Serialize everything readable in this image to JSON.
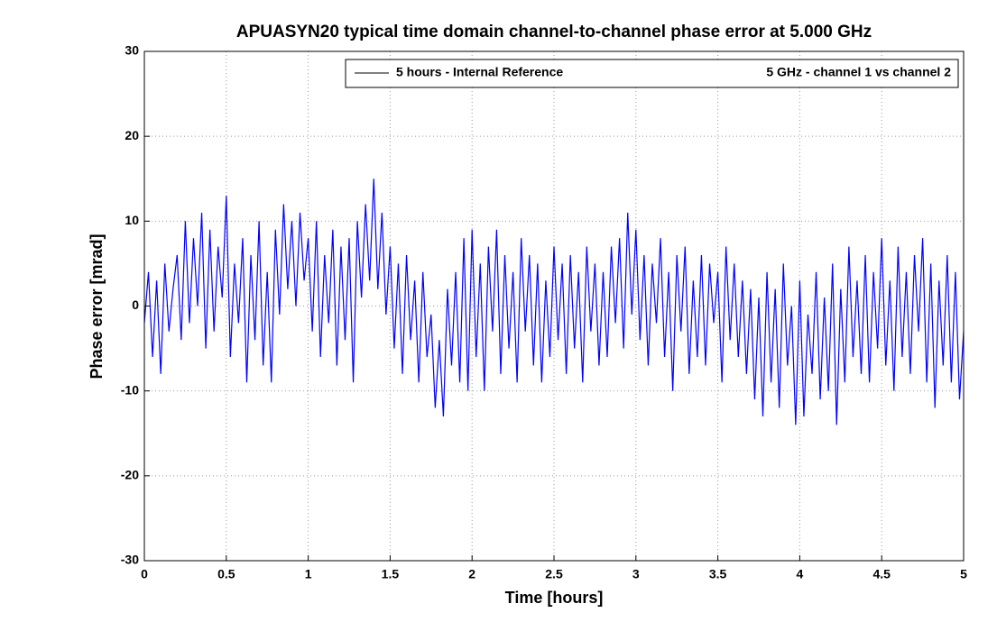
{
  "chart_data": {
    "type": "line",
    "title": "APUASYN20 typical time domain channel-to-channel phase error at 5.000 GHz",
    "x_label": "Time [hours]",
    "y_label": "Phase error [mrad]",
    "legend_note": "5 GHz - channel 1 vs channel 2",
    "legend": "upper right",
    "grid": true,
    "xlim": [
      0,
      5
    ],
    "xticks": [
      0,
      0.5,
      1,
      1.5,
      2,
      2.5,
      3,
      3.5,
      4,
      4.5,
      5
    ],
    "ylim": [
      -30,
      30
    ],
    "yticks": [
      -30,
      -20,
      -10,
      0,
      10,
      20,
      30
    ],
    "x": [
      0,
      0.025,
      0.05,
      0.075,
      0.1,
      0.125,
      0.15,
      0.175,
      0.2,
      0.225,
      0.25,
      0.275,
      0.3,
      0.325,
      0.35,
      0.375,
      0.4,
      0.425,
      0.45,
      0.475,
      0.5,
      0.525,
      0.55,
      0.575,
      0.6,
      0.625,
      0.65,
      0.675,
      0.7,
      0.725,
      0.75,
      0.775,
      0.8,
      0.825,
      0.85,
      0.875,
      0.9,
      0.925,
      0.95,
      0.975,
      1,
      1.025,
      1.05,
      1.075,
      1.1,
      1.125,
      1.15,
      1.175,
      1.2,
      1.225,
      1.25,
      1.275,
      1.3,
      1.325,
      1.35,
      1.375,
      1.4,
      1.425,
      1.45,
      1.475,
      1.5,
      1.525,
      1.55,
      1.575,
      1.6,
      1.625,
      1.65,
      1.675,
      1.7,
      1.725,
      1.75,
      1.775,
      1.8,
      1.825,
      1.85,
      1.875,
      1.9,
      1.925,
      1.95,
      1.975,
      2,
      2.025,
      2.05,
      2.075,
      2.1,
      2.125,
      2.15,
      2.175,
      2.2,
      2.225,
      2.25,
      2.275,
      2.3,
      2.325,
      2.35,
      2.375,
      2.4,
      2.425,
      2.45,
      2.475,
      2.5,
      2.525,
      2.55,
      2.575,
      2.6,
      2.625,
      2.65,
      2.675,
      2.7,
      2.725,
      2.75,
      2.775,
      2.8,
      2.825,
      2.85,
      2.875,
      2.9,
      2.925,
      2.95,
      2.975,
      3,
      3.025,
      3.05,
      3.075,
      3.1,
      3.125,
      3.15,
      3.175,
      3.2,
      3.225,
      3.25,
      3.275,
      3.3,
      3.325,
      3.35,
      3.375,
      3.4,
      3.425,
      3.45,
      3.475,
      3.5,
      3.525,
      3.55,
      3.575,
      3.6,
      3.625,
      3.65,
      3.675,
      3.7,
      3.725,
      3.75,
      3.775,
      3.8,
      3.825,
      3.85,
      3.875,
      3.9,
      3.925,
      3.95,
      3.975,
      4,
      4.025,
      4.05,
      4.075,
      4.1,
      4.125,
      4.15,
      4.175,
      4.2,
      4.225,
      4.25,
      4.275,
      4.3,
      4.325,
      4.35,
      4.375,
      4.4,
      4.425,
      4.45,
      4.475,
      4.5,
      4.525,
      4.55,
      4.575,
      4.6,
      4.625,
      4.65,
      4.675,
      4.7,
      4.725,
      4.75,
      4.775,
      4.8,
      4.825,
      4.85,
      4.875,
      4.9,
      4.925,
      4.95,
      4.975,
      5
    ],
    "series": [
      {
        "name": "5 hours - Internal Reference",
        "color": "#0000ff",
        "values": [
          -2,
          4,
          -6,
          3,
          -8,
          5,
          -3,
          2,
          6,
          -4,
          10,
          -2,
          8,
          0,
          11,
          -5,
          9,
          -3,
          7,
          1,
          13,
          -6,
          5,
          -2,
          8,
          -9,
          6,
          -4,
          10,
          -7,
          4,
          -9,
          9,
          -1,
          12,
          2,
          10,
          0,
          11,
          3,
          8,
          -3,
          10,
          -6,
          6,
          -2,
          9,
          -7,
          7,
          -4,
          8,
          -9,
          10,
          1,
          12,
          3,
          15,
          2,
          11,
          -1,
          7,
          -5,
          5,
          -8,
          6,
          -4,
          3,
          -9,
          4,
          -6,
          -1,
          -12,
          -4,
          -13,
          2,
          -7,
          4,
          -9,
          8,
          -10,
          9,
          -6,
          5,
          -10,
          7,
          -3,
          9,
          -8,
          6,
          -5,
          4,
          -9,
          8,
          -3,
          6,
          -7,
          5,
          -9,
          3,
          -6,
          7,
          -4,
          5,
          -8,
          6,
          -5,
          4,
          -9,
          7,
          -3,
          5,
          -7,
          4,
          -6,
          7,
          -2,
          8,
          -5,
          11,
          -1,
          9,
          -4,
          6,
          -7,
          5,
          -2,
          8,
          -6,
          4,
          -10,
          6,
          -3,
          7,
          -8,
          3,
          -6,
          6,
          -7,
          5,
          -2,
          4,
          -9,
          7,
          -4,
          5,
          -6,
          3,
          -8,
          2,
          -11,
          1,
          -13,
          4,
          -9,
          2,
          -12,
          5,
          -7,
          0,
          -14,
          3,
          -13,
          -1,
          -8,
          4,
          -11,
          1,
          -10,
          5,
          -14,
          2,
          -9,
          7,
          -6,
          3,
          -8,
          6,
          -9,
          4,
          -5,
          8,
          -7,
          3,
          -10,
          7,
          -6,
          4,
          -8,
          6,
          -3,
          8,
          -9,
          5,
          -12,
          3,
          -7,
          6,
          -9,
          4,
          -11,
          -3
        ]
      }
    ]
  }
}
